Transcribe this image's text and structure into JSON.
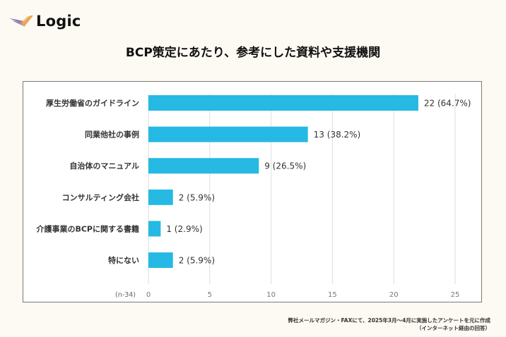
{
  "brand": {
    "name": "Logic",
    "logo_icon": "wing-logo-icon"
  },
  "chart_data": {
    "type": "bar",
    "orientation": "horizontal",
    "title": "BCP策定にあたり、参考にした資料や支援機関",
    "categories": [
      "厚生労働省のガイドライン",
      "同業他社の事例",
      "自治体のマニュアル",
      "コンサルティング会社",
      "介護事業のBCPに関する書籍",
      "特にない"
    ],
    "values": [
      22,
      13,
      9,
      2,
      1,
      2
    ],
    "percents": [
      "64.7%",
      "38.2%",
      "26.5%",
      "5.9%",
      "2.9%",
      "5.9%"
    ],
    "data_labels": [
      "22 (64.7%)",
      "13 (38.2%)",
      "9 (26.5%)",
      "2 (5.9%)",
      "1 (2.9%)",
      "2 (5.9%)"
    ],
    "xlim": [
      0,
      25
    ],
    "xticks": [
      0,
      5,
      10,
      15,
      20,
      25
    ],
    "xlabel": "",
    "ylabel": "",
    "sample_note": "(n-34)",
    "grid": "vertical",
    "bar_color": "#25b9e3",
    "legend": "none"
  },
  "footnote": {
    "line1": "弊社メールマガジン・FAXにて、2025年3月〜4月に実施したアンケートを元に作成",
    "line2": "（インターネット経由の回答）"
  }
}
